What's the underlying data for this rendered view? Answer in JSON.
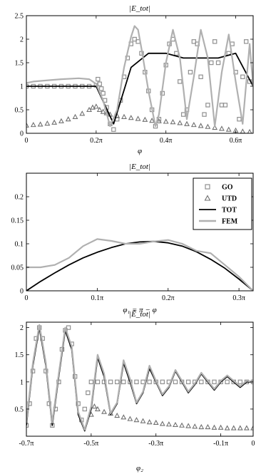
{
  "colors": {
    "go": "#909090",
    "utd": "#707070",
    "tot": "#000000",
    "fem": "#b0b0b0"
  },
  "legend": {
    "entries": [
      {
        "label": "GO",
        "marker": "square"
      },
      {
        "label": "UTD",
        "marker": "triangle"
      },
      {
        "label": "TOT",
        "marker": "line-black"
      },
      {
        "label": "FEM",
        "marker": "line-gray"
      }
    ]
  },
  "chart_data": [
    {
      "type": "line",
      "title": "|E_tot|",
      "xlabel": "φ",
      "ylabel": "",
      "xlim_pi": [
        0,
        0.65
      ],
      "ylim": [
        0,
        2.5
      ],
      "xticks": [
        {
          "v": 0,
          "label": "0"
        },
        {
          "v": 0.2,
          "label": "0.2π"
        },
        {
          "v": 0.4,
          "label": "0.4π"
        },
        {
          "v": 0.6,
          "label": "0.6π"
        }
      ],
      "yticks": [
        {
          "v": 0,
          "label": "0"
        },
        {
          "v": 0.5,
          "label": "0.5"
        },
        {
          "v": 1,
          "label": "1"
        },
        {
          "v": 1.5,
          "label": "1.5"
        },
        {
          "v": 2,
          "label": "2"
        },
        {
          "v": 2.5,
          "label": "2.5"
        }
      ],
      "series": [
        {
          "key": "GO",
          "style": "square",
          "x": [
            0,
            0.02,
            0.04,
            0.06,
            0.08,
            0.1,
            0.12,
            0.14,
            0.16,
            0.18,
            0.2,
            0.205,
            0.21,
            0.215,
            0.22,
            0.225,
            0.23,
            0.24,
            0.25,
            0.26,
            0.27,
            0.28,
            0.29,
            0.3,
            0.31,
            0.32,
            0.33,
            0.34,
            0.35,
            0.36,
            0.37,
            0.38,
            0.39,
            0.4,
            0.41,
            0.42,
            0.43,
            0.44,
            0.45,
            0.46,
            0.47,
            0.48,
            0.49,
            0.5,
            0.51,
            0.52,
            0.53,
            0.54,
            0.55,
            0.56,
            0.57,
            0.58,
            0.59,
            0.6,
            0.61,
            0.62,
            0.63,
            0.64
          ],
          "y": [
            1.0,
            1.0,
            1.0,
            1.0,
            1.0,
            1.0,
            1.0,
            1.0,
            1.0,
            1.0,
            1.02,
            1.15,
            1.05,
            0.95,
            0.85,
            0.7,
            0.55,
            0.2,
            0.08,
            0.3,
            0.7,
            1.2,
            1.6,
            1.9,
            2.0,
            1.95,
            1.7,
            1.3,
            0.9,
            0.5,
            0.15,
            0.3,
            0.85,
            1.45,
            1.9,
            2.0,
            1.7,
            1.1,
            0.4,
            0.5,
            1.3,
            1.95,
            1.9,
            1.2,
            0.4,
            0.6,
            1.5,
            1.95,
            1.5,
            0.6,
            0.6,
            1.7,
            1.9,
            1.3,
            0.3,
            1.2,
            1.95,
            1.1
          ]
        },
        {
          "key": "UTD",
          "style": "triangle",
          "x": [
            0,
            0.02,
            0.04,
            0.06,
            0.08,
            0.1,
            0.12,
            0.14,
            0.16,
            0.18,
            0.19,
            0.2,
            0.21,
            0.22,
            0.23,
            0.24,
            0.26,
            0.28,
            0.3,
            0.32,
            0.34,
            0.36,
            0.38,
            0.4,
            0.42,
            0.44,
            0.46,
            0.48,
            0.5,
            0.52,
            0.54,
            0.56,
            0.58,
            0.6,
            0.62,
            0.64
          ],
          "y": [
            0.17,
            0.18,
            0.19,
            0.21,
            0.23,
            0.26,
            0.3,
            0.35,
            0.42,
            0.5,
            0.55,
            0.57,
            0.5,
            0.46,
            0.43,
            0.4,
            0.37,
            0.35,
            0.33,
            0.31,
            0.29,
            0.27,
            0.26,
            0.25,
            0.24,
            0.22,
            0.2,
            0.18,
            0.16,
            0.14,
            0.12,
            0.1,
            0.08,
            0.06,
            0.04,
            0.03
          ]
        },
        {
          "key": "TOT",
          "style": "line-black",
          "x": [
            0,
            0.1,
            0.2,
            0.225,
            0.25,
            0.3,
            0.35,
            0.4,
            0.45,
            0.5,
            0.55,
            0.6,
            0.65
          ],
          "y": [
            1.0,
            1.0,
            1.0,
            0.6,
            0.2,
            1.4,
            1.7,
            1.7,
            1.6,
            1.6,
            1.6,
            1.7,
            1.0
          ]
        },
        {
          "key": "FEM",
          "style": "line-gray",
          "x": [
            0,
            0.02,
            0.05,
            0.1,
            0.15,
            0.18,
            0.2,
            0.22,
            0.24,
            0.26,
            0.28,
            0.3,
            0.31,
            0.32,
            0.33,
            0.35,
            0.37,
            0.38,
            0.4,
            0.42,
            0.44,
            0.46,
            0.48,
            0.5,
            0.52,
            0.54,
            0.56,
            0.58,
            0.6,
            0.62,
            0.64,
            0.65
          ],
          "y": [
            1.07,
            1.1,
            1.12,
            1.15,
            1.17,
            1.15,
            1.05,
            0.7,
            0.15,
            0.5,
            1.4,
            2.05,
            2.28,
            2.2,
            1.8,
            0.9,
            0.15,
            0.4,
            1.5,
            2.2,
            1.6,
            0.3,
            1.2,
            2.2,
            1.6,
            0.15,
            1.3,
            2.1,
            1.1,
            0.2,
            1.9,
            1.0
          ]
        }
      ]
    },
    {
      "type": "line",
      "title": "|E_tot|",
      "xlabel": "φ₁ = π − φ",
      "ylabel": "",
      "xlim_pi": [
        0,
        0.32
      ],
      "ylim": [
        0,
        0.25
      ],
      "xticks": [
        {
          "v": 0,
          "label": "0"
        },
        {
          "v": 0.1,
          "label": "0.1π"
        },
        {
          "v": 0.2,
          "label": "0.2π"
        },
        {
          "v": 0.3,
          "label": "0.3π"
        }
      ],
      "yticks": [
        {
          "v": 0,
          "label": "0"
        },
        {
          "v": 0.05,
          "label": "0.05"
        },
        {
          "v": 0.1,
          "label": "0.1"
        },
        {
          "v": 0.15,
          "label": "0.15"
        },
        {
          "v": 0.2,
          "label": "0.2"
        }
      ],
      "series": [
        {
          "key": "TOT",
          "style": "line-black",
          "x": [
            0,
            0.02,
            0.04,
            0.06,
            0.08,
            0.1,
            0.12,
            0.14,
            0.16,
            0.18,
            0.2,
            0.22,
            0.24,
            0.26,
            0.28,
            0.3,
            0.32
          ],
          "y": [
            0.0,
            0.02,
            0.038,
            0.055,
            0.07,
            0.082,
            0.092,
            0.1,
            0.104,
            0.105,
            0.102,
            0.095,
            0.083,
            0.067,
            0.048,
            0.025,
            0.0
          ]
        },
        {
          "key": "FEM",
          "style": "line-gray",
          "x": [
            0,
            0.02,
            0.04,
            0.06,
            0.08,
            0.1,
            0.12,
            0.14,
            0.16,
            0.18,
            0.2,
            0.22,
            0.24,
            0.26,
            0.28,
            0.3,
            0.32
          ],
          "y": [
            0.05,
            0.05,
            0.055,
            0.07,
            0.095,
            0.11,
            0.106,
            0.1,
            0.1,
            0.105,
            0.108,
            0.1,
            0.085,
            0.08,
            0.055,
            0.03,
            0.0
          ]
        }
      ]
    },
    {
      "type": "line",
      "title": "|Ẽ_tot|",
      "xlabel": "φ₂",
      "ylabel": "",
      "xlim_pi": [
        -0.7,
        0
      ],
      "ylim": [
        0,
        2.1
      ],
      "xticks": [
        {
          "v": -0.7,
          "label": "-0.7π"
        },
        {
          "v": -0.5,
          "label": "-0.5π"
        },
        {
          "v": -0.3,
          "label": "-0.3π"
        },
        {
          "v": -0.1,
          "label": "-0.1π"
        },
        {
          "v": 0,
          "label": "0"
        }
      ],
      "yticks": [
        {
          "v": 0.5,
          "label": "0.5"
        },
        {
          "v": 1,
          "label": "1"
        },
        {
          "v": 1.5,
          "label": "1.5"
        },
        {
          "v": 2,
          "label": "2"
        }
      ],
      "series": [
        {
          "key": "GO",
          "style": "square",
          "x": [
            -0.7,
            -0.69,
            -0.68,
            -0.67,
            -0.66,
            -0.65,
            -0.64,
            -0.63,
            -0.62,
            -0.61,
            -0.6,
            -0.59,
            -0.58,
            -0.57,
            -0.56,
            -0.55,
            -0.54,
            -0.53,
            -0.52,
            -0.51,
            -0.5,
            -0.48,
            -0.46,
            -0.44,
            -0.42,
            -0.4,
            -0.38,
            -0.36,
            -0.34,
            -0.32,
            -0.3,
            -0.28,
            -0.26,
            -0.24,
            -0.22,
            -0.2,
            -0.18,
            -0.16,
            -0.14,
            -0.12,
            -0.1,
            -0.08,
            -0.06,
            -0.04,
            -0.02,
            0
          ],
          "y": [
            0.2,
            0.6,
            1.2,
            1.8,
            2.0,
            1.8,
            1.2,
            0.6,
            0.2,
            0.5,
            1.0,
            1.6,
            1.95,
            2.0,
            1.7,
            1.1,
            0.6,
            0.3,
            0.5,
            0.8,
            1.0,
            1.0,
            1.0,
            1.0,
            1.0,
            1.0,
            1.0,
            1.0,
            1.0,
            1.0,
            1.0,
            1.0,
            1.0,
            1.0,
            1.0,
            1.0,
            1.0,
            1.0,
            1.0,
            1.0,
            1.0,
            1.0,
            1.0,
            1.0,
            1.0,
            1.0
          ]
        },
        {
          "key": "UTD",
          "style": "triangle",
          "x": [
            -0.5,
            -0.49,
            -0.48,
            -0.46,
            -0.44,
            -0.42,
            -0.4,
            -0.38,
            -0.36,
            -0.34,
            -0.32,
            -0.3,
            -0.28,
            -0.26,
            -0.24,
            -0.22,
            -0.2,
            -0.18,
            -0.16,
            -0.14,
            -0.12,
            -0.1,
            -0.08,
            -0.06,
            -0.04,
            -0.02,
            0
          ],
          "y": [
            0.4,
            0.55,
            0.5,
            0.45,
            0.42,
            0.38,
            0.35,
            0.32,
            0.3,
            0.28,
            0.26,
            0.25,
            0.23,
            0.22,
            0.21,
            0.2,
            0.19,
            0.18,
            0.17,
            0.17,
            0.16,
            0.16,
            0.15,
            0.15,
            0.15,
            0.15,
            0.15
          ]
        },
        {
          "key": "TOT",
          "style": "line-black",
          "x": [
            -0.7,
            -0.68,
            -0.66,
            -0.64,
            -0.62,
            -0.6,
            -0.58,
            -0.56,
            -0.54,
            -0.52,
            -0.5,
            -0.48,
            -0.46,
            -0.44,
            -0.42,
            -0.4,
            -0.38,
            -0.36,
            -0.34,
            -0.32,
            -0.3,
            -0.28,
            -0.26,
            -0.24,
            -0.22,
            -0.2,
            -0.18,
            -0.16,
            -0.14,
            -0.12,
            -0.1,
            -0.08,
            -0.06,
            -0.04,
            -0.02,
            0
          ],
          "y": [
            0.2,
            1.3,
            2.0,
            1.3,
            0.2,
            1.1,
            1.95,
            1.6,
            0.4,
            0.1,
            0.5,
            1.45,
            1.1,
            0.4,
            0.6,
            1.35,
            1.0,
            0.6,
            0.8,
            1.25,
            1.0,
            0.75,
            0.9,
            1.2,
            1.0,
            0.8,
            0.95,
            1.15,
            1.0,
            0.85,
            1.0,
            1.1,
            1.0,
            0.9,
            1.0,
            1.0
          ]
        },
        {
          "key": "FEM",
          "style": "line-gray",
          "x": [
            -0.7,
            -0.68,
            -0.66,
            -0.64,
            -0.62,
            -0.6,
            -0.58,
            -0.56,
            -0.54,
            -0.52,
            -0.5,
            -0.48,
            -0.46,
            -0.44,
            -0.42,
            -0.4,
            -0.38,
            -0.36,
            -0.34,
            -0.32,
            -0.3,
            -0.28,
            -0.26,
            -0.24,
            -0.22,
            -0.2,
            -0.18,
            -0.16,
            -0.14,
            -0.12,
            -0.1,
            -0.08,
            -0.06,
            -0.04,
            -0.02,
            0
          ],
          "y": [
            0.25,
            1.35,
            2.05,
            1.35,
            0.25,
            1.15,
            2.0,
            1.65,
            0.45,
            0.12,
            0.55,
            1.5,
            1.15,
            0.42,
            0.62,
            1.4,
            1.05,
            0.62,
            0.82,
            1.3,
            1.02,
            0.77,
            0.92,
            1.22,
            1.02,
            0.82,
            0.97,
            1.17,
            1.02,
            0.87,
            1.02,
            1.12,
            1.02,
            0.92,
            1.02,
            1.0
          ]
        }
      ]
    }
  ]
}
